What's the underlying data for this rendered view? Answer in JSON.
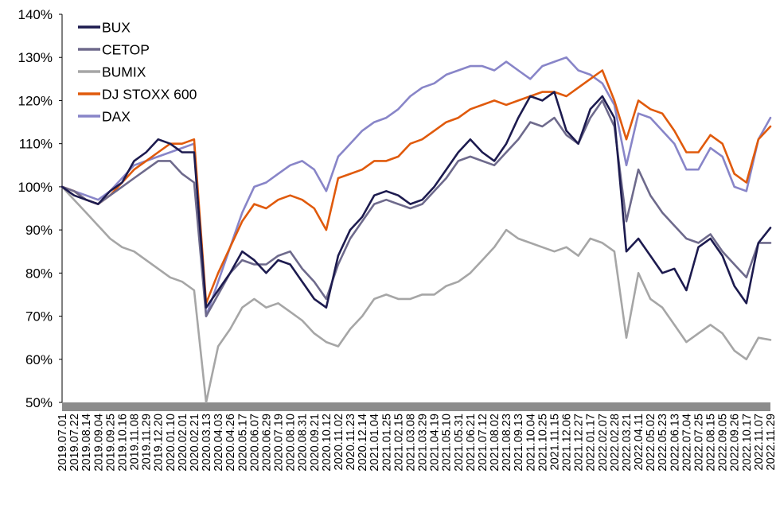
{
  "chart_data": {
    "type": "line",
    "title": "",
    "xlabel": "",
    "ylabel": "",
    "ylim": [
      50,
      140
    ],
    "yticks": [
      "50%",
      "60%",
      "70%",
      "80%",
      "90%",
      "100%",
      "110%",
      "120%",
      "130%",
      "140%"
    ],
    "grid": false,
    "legend_position": "top-left",
    "x_labels": [
      "2019.07.01",
      "2019.07.22",
      "2019.08.14",
      "2019.09.04",
      "2019.09.25",
      "2019.10.16",
      "2019.11.08",
      "2019.11.29",
      "2019.12.20",
      "2020.01.10",
      "2020.02.01",
      "2020.02.21",
      "2020.03.13",
      "2020.04.03",
      "2020.04.26",
      "2020.05.17",
      "2020.06.07",
      "2020.06.29",
      "2020.07.19",
      "2020.08.10",
      "2020.08.31",
      "2020.09.21",
      "2020.10.12",
      "2020.11.02",
      "2020.11.23",
      "2020.12.14",
      "2021.01.04",
      "2021.01.25",
      "2021.02.15",
      "2021.03.08",
      "2021.03.29",
      "2021.04.19",
      "2021.05.10",
      "2021.05.31",
      "2021.06.21",
      "2021.07.12",
      "2021.08.02",
      "2021.08.23",
      "2021.09.13",
      "2021.10.04",
      "2021.10.25",
      "2021.11.15",
      "2021.12.06",
      "2021.12.27",
      "2022.01.17",
      "2022.02.07",
      "2022.02.28",
      "2022.03.21",
      "2022.04.11",
      "2022.05.02",
      "2022.05.23",
      "2022.06.13",
      "2022.07.04",
      "2022.07.25",
      "2022.08.15",
      "2022.09.05",
      "2022.09.26",
      "2022.10.17",
      "2022.11.07",
      "2022.11.29"
    ],
    "series": [
      {
        "name": "BUX",
        "color": "#1d1b4f",
        "values": [
          100,
          98,
          97,
          96,
          99,
          101,
          106,
          108,
          111,
          110,
          108,
          108,
          72,
          76,
          80,
          85,
          83,
          80,
          83,
          82,
          78,
          74,
          72,
          84,
          90,
          93,
          98,
          99,
          98,
          96,
          97,
          100,
          104,
          108,
          111,
          108,
          106,
          110,
          116,
          121,
          120,
          122,
          113,
          110,
          118,
          121,
          116,
          85,
          88,
          84,
          80,
          81,
          76,
          86,
          88,
          84,
          77,
          73,
          87,
          90.5
        ]
      },
      {
        "name": "CETOP",
        "color": "#6e6a8c",
        "values": [
          100,
          99,
          97,
          96,
          98,
          100,
          102,
          104,
          106,
          106,
          103,
          101,
          70,
          75,
          80,
          83,
          82,
          82,
          84,
          85,
          81,
          78,
          74,
          82,
          88,
          92,
          96,
          97,
          96,
          95,
          96,
          99,
          102,
          106,
          107,
          106,
          105,
          108,
          111,
          115,
          114,
          116,
          112,
          110,
          116,
          120,
          114,
          92,
          104,
          98,
          94,
          91,
          88,
          87,
          89,
          85,
          82,
          79,
          87,
          87
        ]
      },
      {
        "name": "BUMIX",
        "color": "#a6a6a6",
        "values": [
          100,
          97,
          94,
          91,
          88,
          86,
          85,
          83,
          81,
          79,
          78,
          76,
          50,
          63,
          67,
          72,
          74,
          72,
          73,
          71,
          69,
          66,
          64,
          63,
          67,
          70,
          74,
          75,
          74,
          74,
          75,
          75,
          77,
          78,
          80,
          83,
          86,
          90,
          88,
          87,
          86,
          85,
          86,
          84,
          88,
          87,
          85,
          65,
          80,
          74,
          72,
          68,
          64,
          66,
          68,
          66,
          62,
          60,
          65,
          64.5
        ]
      },
      {
        "name": "DJ STOXX 600",
        "color": "#e05a0c",
        "values": [
          100,
          99,
          97,
          96,
          98,
          101,
          104,
          106,
          108,
          110,
          110,
          111,
          73,
          80,
          86,
          92,
          96,
          95,
          97,
          98,
          97,
          95,
          90,
          102,
          103,
          104,
          106,
          106,
          107,
          110,
          111,
          113,
          115,
          116,
          118,
          119,
          120,
          119,
          120,
          121,
          122,
          122,
          121,
          123,
          125,
          127,
          120,
          111,
          120,
          118,
          117,
          113,
          108,
          108,
          112,
          110,
          103,
          101,
          111,
          114
        ]
      },
      {
        "name": "DAX",
        "color": "#8885c8",
        "values": [
          100,
          99,
          98,
          97,
          99,
          102,
          105,
          106,
          107,
          108,
          109,
          110,
          70,
          78,
          86,
          94,
          100,
          101,
          103,
          105,
          106,
          104,
          99,
          107,
          110,
          113,
          115,
          116,
          118,
          121,
          123,
          124,
          126,
          127,
          128,
          128,
          127,
          129,
          127,
          125,
          128,
          129,
          130,
          127,
          126,
          124,
          119,
          105,
          117,
          116,
          113,
          110,
          104,
          104,
          109,
          107,
          100,
          99,
          111,
          116
        ]
      }
    ]
  }
}
